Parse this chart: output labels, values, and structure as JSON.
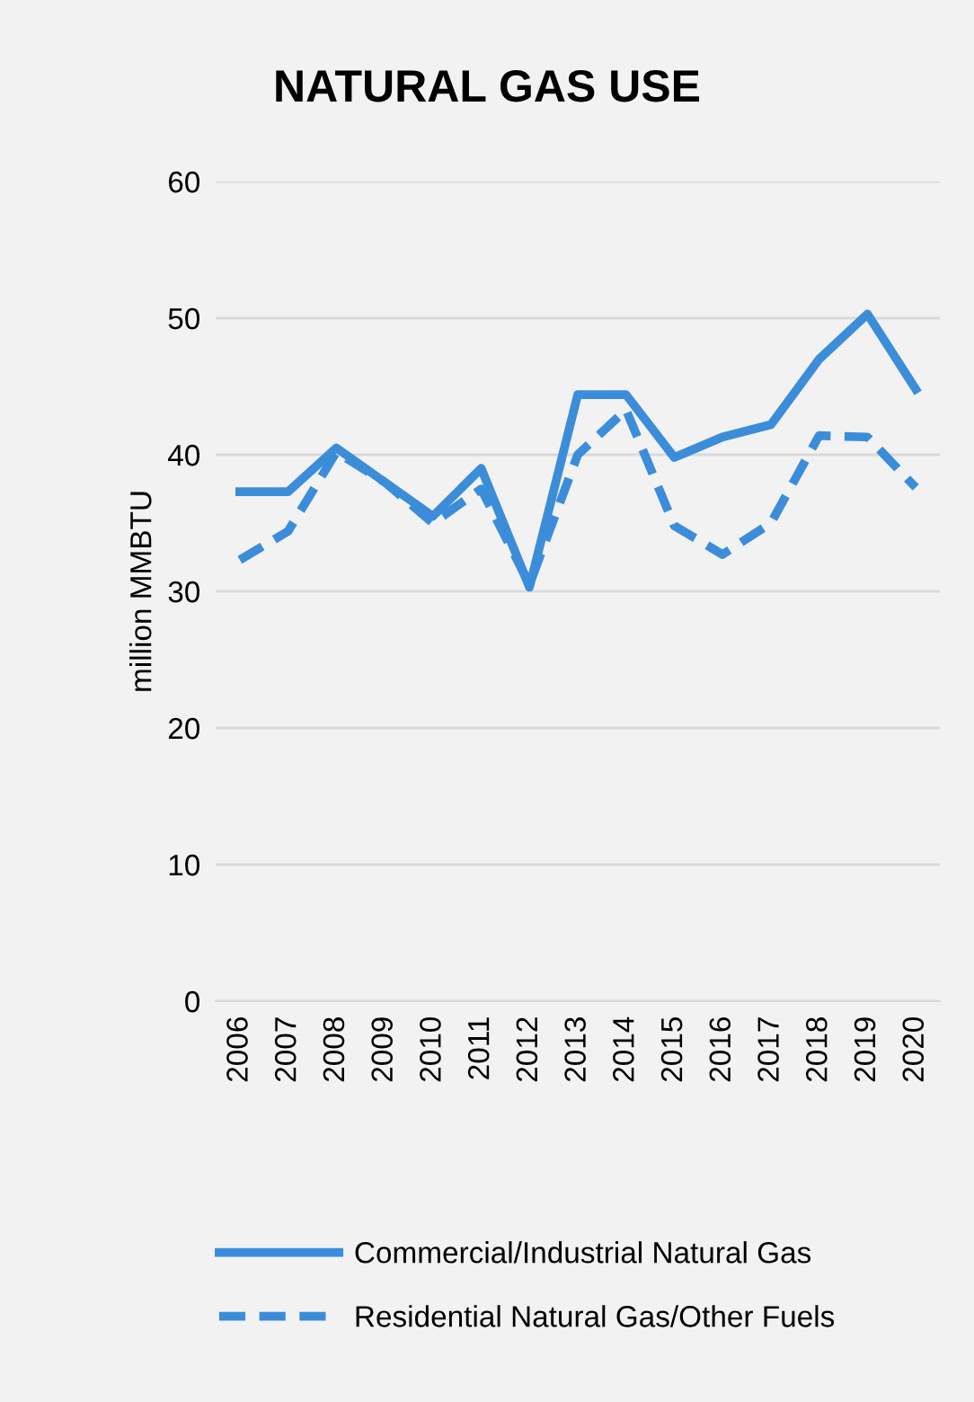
{
  "chart_data": {
    "type": "line",
    "title": "NATURAL GAS USE",
    "ylabel": "million MMBTU",
    "categories": [
      "2006",
      "2007",
      "2008",
      "2009",
      "2010",
      "2011",
      "2012",
      "2013",
      "2014",
      "2015",
      "2016",
      "2017",
      "2018",
      "2019",
      "2020"
    ],
    "series": [
      {
        "name": "Commercial/Industrial Natural Gas",
        "color": "#3c8dd9",
        "line_style": "solid",
        "values": [
          37.3,
          37.3,
          40.5,
          38,
          35.5,
          39,
          30.3,
          44.4,
          44.4,
          39.8,
          41.3,
          42.2,
          47,
          50.3,
          44.8
        ]
      },
      {
        "name": "Residential Natural Gas/Other Fuels",
        "color": "#3c8dd9",
        "line_style": "dashed",
        "values": [
          32.3,
          34.4,
          40.2,
          38,
          35,
          37.5,
          30.5,
          40,
          43.3,
          34.8,
          32.7,
          35,
          41.4,
          41.3,
          37.6
        ]
      }
    ],
    "ylim": [
      0,
      60
    ],
    "yticks": [
      0,
      10,
      20,
      30,
      40,
      50,
      60
    ],
    "grid": "y",
    "legend": "bottom",
    "marker": "none"
  }
}
